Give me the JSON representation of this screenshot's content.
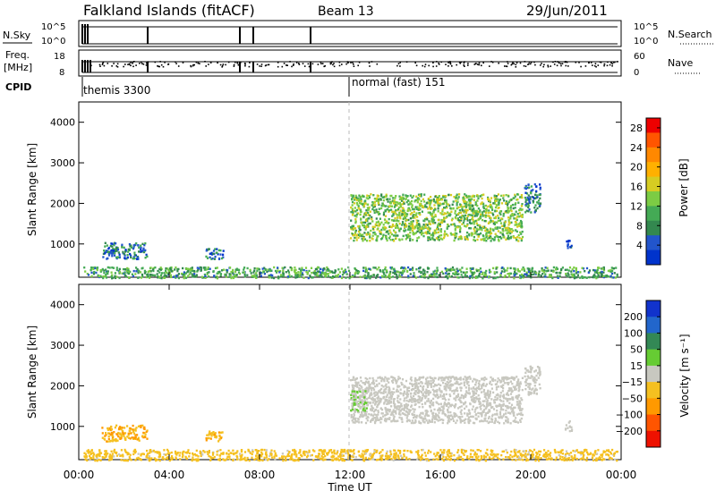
{
  "header": {
    "station": "Falkland Islands (fitACF)",
    "beam": "Beam 13",
    "date": "29/Jun/2011"
  },
  "summary_panel": {
    "nsky_label": "N.Sky",
    "nsky_ticks": [
      "10^5",
      "10^0"
    ],
    "nsearch_label": "N.Search",
    "nsearch_ticks": [
      "10^5",
      "10^0"
    ],
    "freq_label_line1": "Freq.",
    "freq_label_line2": "[MHz]",
    "freq_ticks": [
      "18",
      "8"
    ],
    "nave_label": "Nave",
    "nave_ticks": [
      "60",
      "0"
    ],
    "cpid_label": "CPID",
    "cpid_segments": [
      {
        "label": "themis 3300",
        "start_hour": 0.1
      },
      {
        "label": "normal (fast) 151",
        "start_hour": 12.0
      }
    ]
  },
  "chart_data": [
    {
      "type": "heatmap",
      "title": "",
      "xlabel": "Time UT",
      "ylabel": "Slant Range [km]",
      "xlim": [
        0,
        24
      ],
      "ylim": [
        180,
        4500
      ],
      "x_ticks": [
        "00:00",
        "04:00",
        "08:00",
        "12:00",
        "16:00",
        "20:00",
        "00:00"
      ],
      "y_ticks": [
        "1000",
        "2000",
        "3000",
        "4000"
      ],
      "colorbar": {
        "label": "Power [dB]",
        "ticks": [
          "4",
          "8",
          "12",
          "16",
          "20",
          "24",
          "28"
        ],
        "range": [
          0,
          30
        ],
        "colors": [
          "#0033cc",
          "#2255cc",
          "#33884f",
          "#44aa55",
          "#7ccc44",
          "#d6cc22",
          "#ffb000",
          "#ff8800",
          "#ff5500",
          "#ee0000"
        ]
      },
      "echo_regions": [
        {
          "t0": 12.0,
          "t1": 19.6,
          "r0": 1100,
          "r1": 2250,
          "v": 13
        },
        {
          "t0": 1.0,
          "t1": 3.0,
          "r0": 650,
          "r1": 1050,
          "v": 6
        },
        {
          "t0": 5.6,
          "t1": 6.4,
          "r0": 650,
          "r1": 900,
          "v": 6
        },
        {
          "t0": 19.7,
          "t1": 20.4,
          "r0": 1800,
          "r1": 2500,
          "v": 6
        },
        {
          "t0": 21.5,
          "t1": 21.8,
          "r0": 900,
          "r1": 1150,
          "v": 5
        },
        {
          "t0": 0.2,
          "t1": 23.8,
          "r0": 180,
          "r1": 450,
          "v": 10
        }
      ]
    },
    {
      "type": "heatmap",
      "title": "",
      "xlabel": "Time UT",
      "ylabel": "Slant Range [km]",
      "xlim": [
        0,
        24
      ],
      "ylim": [
        180,
        4500
      ],
      "x_ticks": [
        "00:00",
        "04:00",
        "08:00",
        "12:00",
        "16:00",
        "20:00",
        "00:00"
      ],
      "y_ticks": [
        "1000",
        "2000",
        "3000",
        "4000"
      ],
      "colorbar": {
        "label": "Velocity [m s⁻¹]",
        "ticks": [
          "200",
          "100",
          "50",
          "15",
          "−15",
          "−50",
          "−100",
          "−200"
        ],
        "range": [
          -250,
          250
        ],
        "colors": [
          "#1133cc",
          "#2266cc",
          "#338855",
          "#66cc33",
          "#c8c8c0",
          "#f5c020",
          "#ff9900",
          "#ff5500",
          "#ee1100"
        ]
      },
      "echo_regions": [
        {
          "t0": 12.0,
          "t1": 19.6,
          "r0": 1100,
          "r1": 2250,
          "v": 0
        },
        {
          "t0": 12.0,
          "t1": 12.7,
          "r0": 1400,
          "r1": 1900,
          "v": 30
        },
        {
          "t0": 1.0,
          "t1": 3.0,
          "r0": 650,
          "r1": 1050,
          "v": -80
        },
        {
          "t0": 5.6,
          "t1": 6.4,
          "r0": 650,
          "r1": 900,
          "v": -80
        },
        {
          "t0": 19.7,
          "t1": 20.4,
          "r0": 1800,
          "r1": 2500,
          "v": 0
        },
        {
          "t0": 21.5,
          "t1": 21.8,
          "r0": 900,
          "r1": 1150,
          "v": 0
        },
        {
          "t0": 0.2,
          "t1": 23.8,
          "r0": 180,
          "r1": 450,
          "v": -40
        }
      ]
    }
  ]
}
